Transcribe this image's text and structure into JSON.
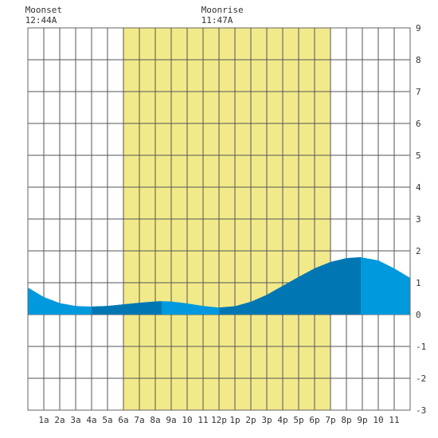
{
  "chart_data": {
    "type": "area",
    "title": "",
    "xlabel": "",
    "ylabel": "",
    "x_unit": "hour of day",
    "xlim": [
      0,
      24
    ],
    "ylim": [
      -3,
      9
    ],
    "y_ticks": [
      -3,
      -2,
      -1,
      0,
      1,
      2,
      3,
      4,
      5,
      6,
      7,
      8,
      9
    ],
    "x_tick_labels": [
      {
        "hour": 1,
        "label": "1a"
      },
      {
        "hour": 2,
        "label": "2a"
      },
      {
        "hour": 3,
        "label": "3a"
      },
      {
        "hour": 4,
        "label": "4a"
      },
      {
        "hour": 5,
        "label": "5a"
      },
      {
        "hour": 6,
        "label": "6a"
      },
      {
        "hour": 7,
        "label": "7a"
      },
      {
        "hour": 8,
        "label": "8a"
      },
      {
        "hour": 9,
        "label": "9a"
      },
      {
        "hour": 10,
        "label": "10"
      },
      {
        "hour": 11,
        "label": "11"
      },
      {
        "hour": 12,
        "label": "12p"
      },
      {
        "hour": 13,
        "label": "1p"
      },
      {
        "hour": 14,
        "label": "2p"
      },
      {
        "hour": 15,
        "label": "3p"
      },
      {
        "hour": 16,
        "label": "4p"
      },
      {
        "hour": 17,
        "label": "5p"
      },
      {
        "hour": 18,
        "label": "6p"
      },
      {
        "hour": 19,
        "label": "7p"
      },
      {
        "hour": 20,
        "label": "8p"
      },
      {
        "hour": 21,
        "label": "9p"
      },
      {
        "hour": 22,
        "label": "10"
      },
      {
        "hour": 23,
        "label": "11"
      }
    ],
    "grid": true,
    "daylight": {
      "start_hour": 6,
      "end_hour": 19,
      "color": "#f2e98a"
    },
    "tide": {
      "color_light": "#0099dd",
      "color_dark": "#0077b3",
      "shade_segments": [
        [
          4,
          8.4
        ],
        [
          12,
          20.9
        ]
      ],
      "points": [
        {
          "hour": 0.0,
          "height": 0.85
        },
        {
          "hour": 1.0,
          "height": 0.55
        },
        {
          "hour": 2.0,
          "height": 0.36
        },
        {
          "hour": 3.0,
          "height": 0.27
        },
        {
          "hour": 4.0,
          "height": 0.25
        },
        {
          "hour": 5.0,
          "height": 0.27
        },
        {
          "hour": 6.0,
          "height": 0.32
        },
        {
          "hour": 7.0,
          "height": 0.37
        },
        {
          "hour": 8.0,
          "height": 0.41
        },
        {
          "hour": 8.4,
          "height": 0.42
        },
        {
          "hour": 9.0,
          "height": 0.41
        },
        {
          "hour": 10.0,
          "height": 0.35
        },
        {
          "hour": 11.0,
          "height": 0.27
        },
        {
          "hour": 12.0,
          "height": 0.22
        },
        {
          "hour": 13.0,
          "height": 0.26
        },
        {
          "hour": 14.0,
          "height": 0.4
        },
        {
          "hour": 15.0,
          "height": 0.62
        },
        {
          "hour": 16.0,
          "height": 0.9
        },
        {
          "hour": 17.0,
          "height": 1.18
        },
        {
          "hour": 18.0,
          "height": 1.45
        },
        {
          "hour": 19.0,
          "height": 1.65
        },
        {
          "hour": 20.0,
          "height": 1.77
        },
        {
          "hour": 20.9,
          "height": 1.8
        },
        {
          "hour": 22.0,
          "height": 1.7
        },
        {
          "hour": 23.0,
          "height": 1.45
        },
        {
          "hour": 24.0,
          "height": 1.15
        }
      ]
    },
    "annotations": [
      {
        "name": "moonset",
        "label": "Moonset",
        "time": "12:44A",
        "hour": 0.73
      },
      {
        "name": "moonrise",
        "label": "Moonrise",
        "time": "11:47A",
        "hour": 11.78
      }
    ]
  }
}
